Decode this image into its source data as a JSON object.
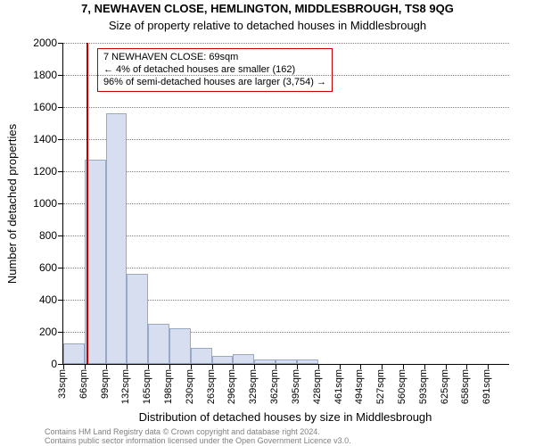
{
  "chart": {
    "type": "histogram",
    "title": "7, NEWHAVEN CLOSE, HEMLINGTON, MIDDLESBROUGH, TS8 9QG",
    "subtitle": "Size of property relative to detached houses in Middlesbrough",
    "yaxis_title": "Number of detached properties",
    "xaxis_title": "Distribution of detached houses by size in Middlesbrough",
    "background_color": "#ffffff",
    "grid_color": "#808080",
    "axis_color": "#000000",
    "bar_fill": "#d6deef",
    "bar_border": "#9aa8c7",
    "marker_color": "#c00000",
    "ylim": [
      0,
      2000
    ],
    "ytick_step": 200,
    "title_fontsize": 13,
    "label_fontsize": 12,
    "tick_fontsize": 11,
    "yticks": [
      {
        "v": 0,
        "label": "0"
      },
      {
        "v": 200,
        "label": "200"
      },
      {
        "v": 400,
        "label": "400"
      },
      {
        "v": 600,
        "label": "600"
      },
      {
        "v": 800,
        "label": "800"
      },
      {
        "v": 1000,
        "label": "1000"
      },
      {
        "v": 1200,
        "label": "1200"
      },
      {
        "v": 1400,
        "label": "1400"
      },
      {
        "v": 1600,
        "label": "1600"
      },
      {
        "v": 1800,
        "label": "1800"
      },
      {
        "v": 2000,
        "label": "2000"
      }
    ],
    "categories": [
      "33sqm",
      "66sqm",
      "99sqm",
      "132sqm",
      "165sqm",
      "198sqm",
      "230sqm",
      "263sqm",
      "296sqm",
      "329sqm",
      "362sqm",
      "395sqm",
      "428sqm",
      "461sqm",
      "494sqm",
      "527sqm",
      "560sqm",
      "593sqm",
      "625sqm",
      "658sqm",
      "691sqm"
    ],
    "values": [
      130,
      1270,
      1560,
      560,
      250,
      220,
      100,
      50,
      60,
      30,
      30,
      30,
      0,
      0,
      0,
      0,
      0,
      0,
      0,
      0,
      0
    ],
    "marker_bin_index": 1,
    "marker_position_in_bin": 0.09,
    "annotation": {
      "line1": "7 NEWHAVEN CLOSE: 69sqm",
      "line2": "← 4% of detached houses are smaller (162)",
      "line3": "96% of semi-detached houses are larger (3,754) →",
      "border_color": "#c00000",
      "text_color": "#000000",
      "fontsize": 11
    },
    "footer": {
      "line1": "Contains HM Land Registry data © Crown copyright and database right 2024.",
      "line2": "Contains public sector information licensed under the Open Government Licence v3.0.",
      "color": "#808080",
      "fontsize": 9
    }
  }
}
